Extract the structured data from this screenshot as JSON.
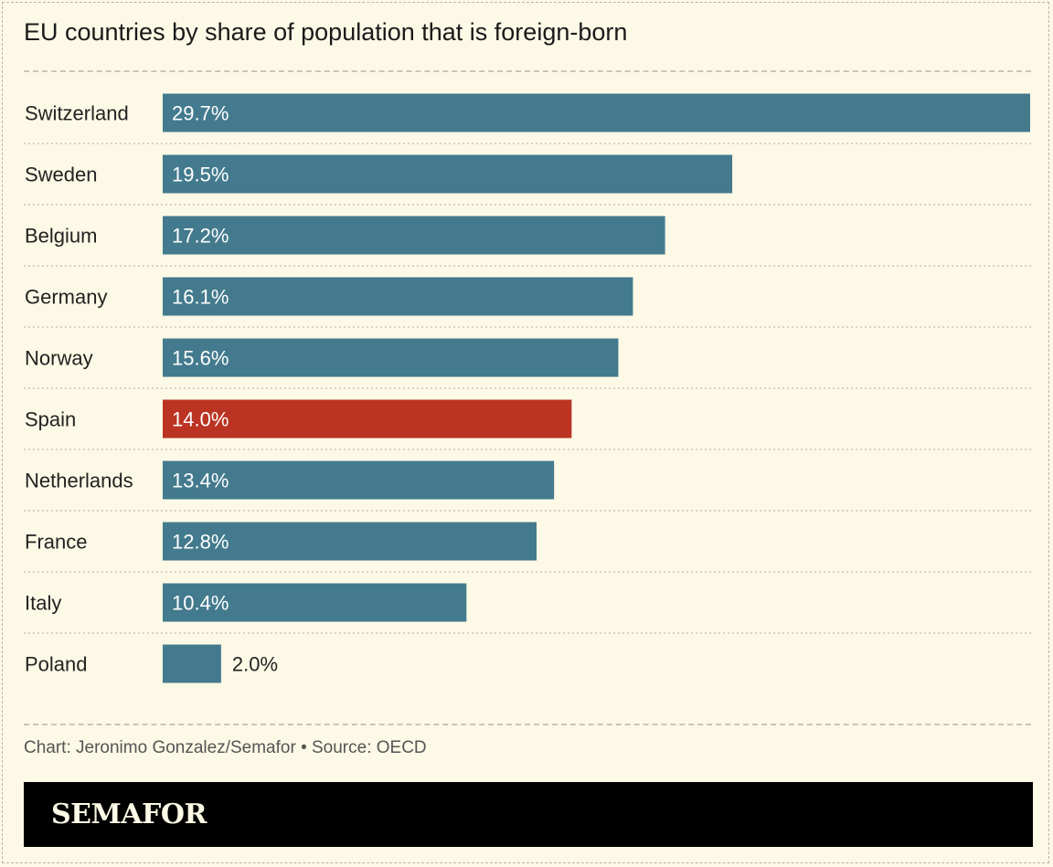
{
  "title": "EU countries by share of population that is foreign-born",
  "source": "Chart: Jeronimo Gonzalez/Semafor • Source: OECD",
  "brand": "SEMAFOR",
  "colors": {
    "bar": "#437a8d",
    "highlight": "#bb3322",
    "background": "#fcf9e6"
  },
  "chart_data": {
    "type": "bar",
    "orientation": "horizontal",
    "title": "EU countries by share of population that is foreign-born",
    "categories": [
      "Switzerland",
      "Sweden",
      "Belgium",
      "Germany",
      "Norway",
      "Spain",
      "Netherlands",
      "France",
      "Italy",
      "Poland"
    ],
    "values": [
      29.7,
      19.5,
      17.2,
      16.1,
      15.6,
      14.0,
      13.4,
      12.8,
      10.4,
      2.0
    ],
    "labels": [
      "29.7%",
      "19.5%",
      "17.2%",
      "16.1%",
      "15.6%",
      "14.0%",
      "13.4%",
      "12.8%",
      "10.4%",
      "2.0%"
    ],
    "highlight": "Spain",
    "xlim": [
      0,
      29.7
    ],
    "grid": false,
    "legend": "none"
  }
}
